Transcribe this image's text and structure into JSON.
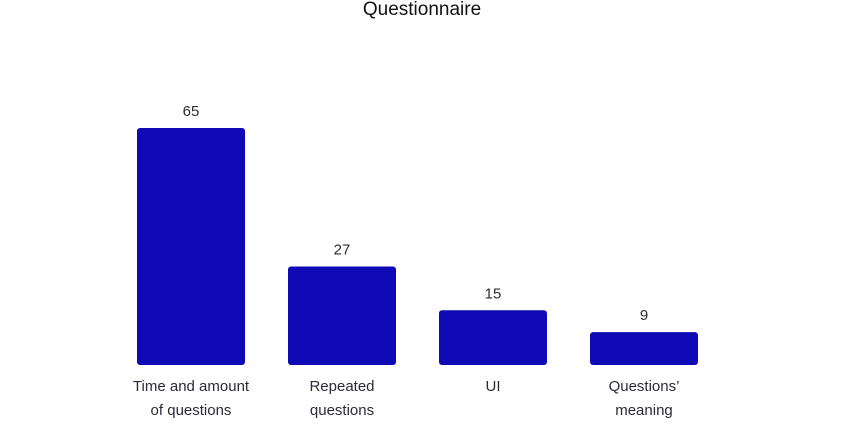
{
  "chart_data": {
    "type": "bar",
    "title": "Questionnaire",
    "categories": [
      [
        "Time and amount",
        "of questions"
      ],
      [
        "Repeated",
        "questions"
      ],
      [
        "UI"
      ],
      [
        "Questions’",
        "meaning"
      ]
    ],
    "values": [
      65,
      27,
      15,
      9
    ],
    "bar_color": "#0f0ab5",
    "xlabel": "",
    "ylabel": "",
    "ylim": [
      0,
      65
    ],
    "grid": false,
    "legend": "none"
  }
}
